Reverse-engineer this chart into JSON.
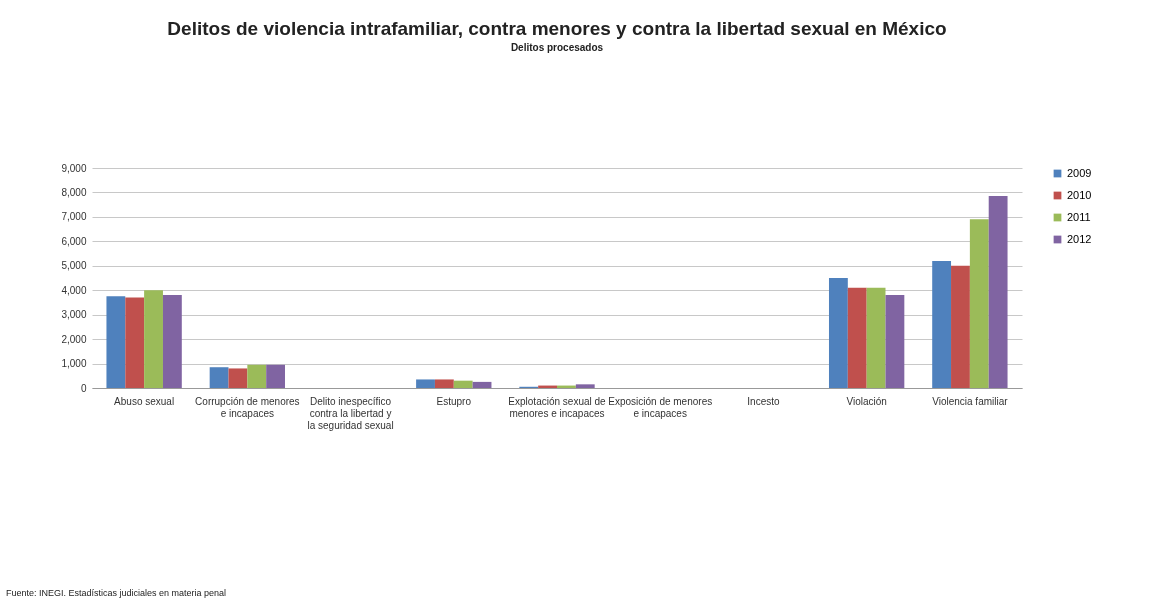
{
  "chart_data": {
    "type": "bar",
    "title": "Delitos de violencia intrafamiliar, contra menores y contra la libertad sexual en México",
    "subtitle": "Delitos procesados",
    "categories": [
      "Abuso sexual",
      "Corrupción de menores e incapaces",
      "Delito inespecífico contra la libertad y la seguridad sexual",
      "Estupro",
      "Explotación sexual de menores e incapaces",
      "Exposición de menores e incapaces",
      "Incesto",
      "Violación",
      "Violencia familiar"
    ],
    "series": [
      {
        "name": "2009",
        "color": "#4f81bd",
        "values": [
          3750,
          850,
          0,
          350,
          50,
          0,
          0,
          4500,
          5200
        ]
      },
      {
        "name": "2010",
        "color": "#c0504d",
        "values": [
          3700,
          800,
          0,
          350,
          100,
          0,
          0,
          4100,
          5000
        ]
      },
      {
        "name": "2011",
        "color": "#9bbb59",
        "values": [
          4000,
          950,
          0,
          300,
          100,
          0,
          0,
          4100,
          6900
        ]
      },
      {
        "name": "2012",
        "color": "#8064a2",
        "values": [
          3800,
          950,
          0,
          250,
          150,
          0,
          0,
          3800,
          7850
        ]
      }
    ],
    "ylim": [
      0,
      9000
    ],
    "yticks": [
      {
        "value": 0,
        "label": "0"
      },
      {
        "value": 1000,
        "label": "1,000"
      },
      {
        "value": 2000,
        "label": "2,000"
      },
      {
        "value": 3000,
        "label": "3,000"
      },
      {
        "value": 4000,
        "label": "4,000"
      },
      {
        "value": 5000,
        "label": "5,000"
      },
      {
        "value": 6000,
        "label": "6,000"
      },
      {
        "value": 7000,
        "label": "7,000"
      },
      {
        "value": 8000,
        "label": "8,000"
      },
      {
        "value": 9000,
        "label": "9,000"
      }
    ],
    "grid": "y",
    "legend": "right",
    "annotations": [
      "Fuente: INEGI. Estadísticas judiciales en materia penal"
    ]
  }
}
